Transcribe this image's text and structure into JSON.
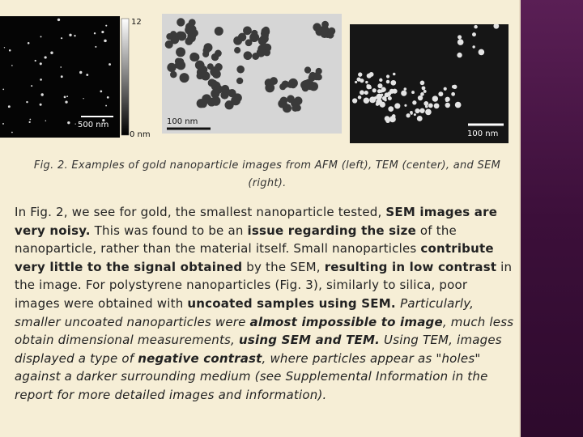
{
  "figures": [
    {
      "scale_bar": "500 nm",
      "colorbar_max": "12",
      "colorbar_min": "0 nm"
    },
    {
      "scale_bar": "100 nm"
    },
    {
      "scale_bar": "100 nm"
    }
  ],
  "caption": "Fig. 2. Examples of gold nanoparticle images from AFM (left), TEM (center), and SEM (right).",
  "paragraph": [
    {
      "text": "In Fig. 2, we see for gold, the smallest nanoparticle tested, ",
      "style": "normal"
    },
    {
      "text": "SEM images are very noisy.",
      "style": "bold"
    },
    {
      "text": " This was found to be an ",
      "style": "normal"
    },
    {
      "text": "issue regarding the size",
      "style": "bold"
    },
    {
      "text": " of the nanoparticle, rather than the material itself. Small nanoparticles ",
      "style": "normal"
    },
    {
      "text": "contribute very little to the signal obtained",
      "style": "bold"
    },
    {
      "text": " by the SEM, ",
      "style": "normal"
    },
    {
      "text": "resulting in low contrast",
      "style": "bold"
    },
    {
      "text": " in the image. For polystyrene nanoparticles (Fig. 3), similarly to silica, poor images were obtained with ",
      "style": "normal"
    },
    {
      "text": "uncoated samples using SEM. ",
      "style": "bold"
    },
    {
      "text": "Particularly, smaller uncoated nanoparticles were ",
      "style": "italic"
    },
    {
      "text": "almost impossible to image",
      "style": "bold-italic"
    },
    {
      "text": ", much less obtain dimensional measurements, ",
      "style": "italic"
    },
    {
      "text": "using SEM and TEM.",
      "style": "bold-italic"
    },
    {
      "text": " Using TEM, images displayed a type of ",
      "style": "italic"
    },
    {
      "text": "negative contrast",
      "style": "bold-italic"
    },
    {
      "text": ", where particles appear as \"holes\" against a darker surrounding medium (see Supplemental Information in the report for more detailed images and information).",
      "style": "italic"
    }
  ]
}
